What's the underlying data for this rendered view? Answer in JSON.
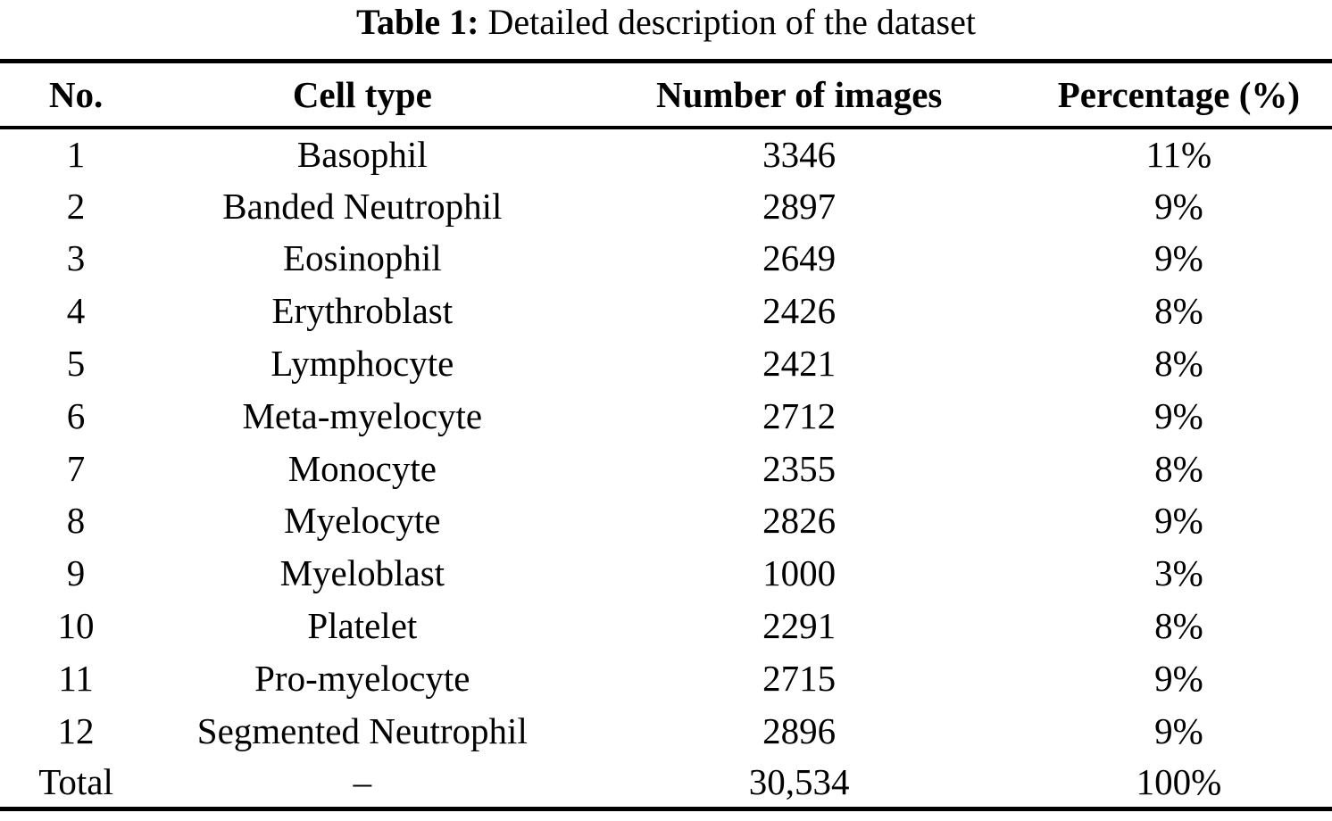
{
  "caption": {
    "label": "Table 1:",
    "text": " Detailed description of the dataset"
  },
  "table": {
    "columns": [
      "No.",
      "Cell type",
      "Number of images",
      "Percentage (%)"
    ],
    "rows": [
      {
        "no": "1",
        "cell_type": "Basophil",
        "num_images": "3346",
        "percentage": "11%"
      },
      {
        "no": "2",
        "cell_type": "Banded Neutrophil",
        "num_images": "2897",
        "percentage": "9%"
      },
      {
        "no": "3",
        "cell_type": "Eosinophil",
        "num_images": "2649",
        "percentage": "9%"
      },
      {
        "no": "4",
        "cell_type": "Erythroblast",
        "num_images": "2426",
        "percentage": "8%"
      },
      {
        "no": "5",
        "cell_type": "Lymphocyte",
        "num_images": "2421",
        "percentage": "8%"
      },
      {
        "no": "6",
        "cell_type": "Meta-myelocyte",
        "num_images": "2712",
        "percentage": "9%"
      },
      {
        "no": "7",
        "cell_type": "Monocyte",
        "num_images": "2355",
        "percentage": "8%"
      },
      {
        "no": "8",
        "cell_type": "Myelocyte",
        "num_images": "2826",
        "percentage": "9%"
      },
      {
        "no": "9",
        "cell_type": "Myeloblast",
        "num_images": "1000",
        "percentage": "3%"
      },
      {
        "no": "10",
        "cell_type": "Platelet",
        "num_images": "2291",
        "percentage": "8%"
      },
      {
        "no": "11",
        "cell_type": "Pro-myelocyte",
        "num_images": "2715",
        "percentage": "9%"
      },
      {
        "no": "12",
        "cell_type": "Segmented Neutrophil",
        "num_images": "2896",
        "percentage": "9%"
      }
    ],
    "total_row": {
      "no": "Total",
      "cell_type": "–",
      "num_images": "30,534",
      "percentage": "100%"
    }
  },
  "colors": {
    "text": "#000000",
    "background": "#ffffff",
    "rule": "#000000"
  }
}
